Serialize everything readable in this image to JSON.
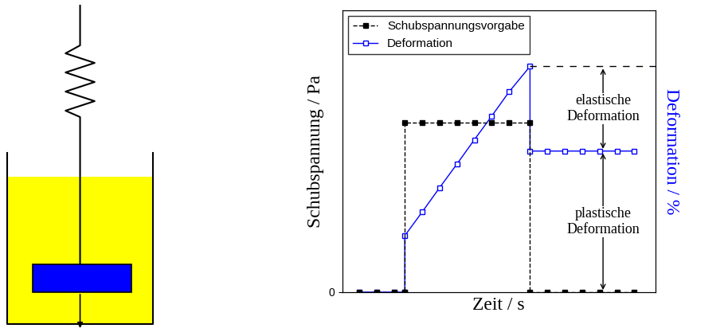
{
  "chart_data": {
    "type": "line",
    "x_label": "Zeit / s",
    "y_label": "Schubspannung / Pa",
    "y2_label": "Deformation / %",
    "xlim": [
      0,
      18
    ],
    "ylim": [
      0,
      5
    ],
    "yticks": [
      0
    ],
    "y2lim": [
      0,
      5
    ],
    "y2ticks": [],
    "tick_labels": "y",
    "legend": "upper left",
    "series": [
      {
        "name": "Schubspannungsvorgabe",
        "color": "#000000",
        "marker": "filled_square",
        "line_style": "dashed",
        "x": [
          1,
          2,
          3,
          3.6,
          3.6,
          4.6,
          5.6,
          6.6,
          7.6,
          8.6,
          9.6,
          10.8,
          10.8,
          11.8,
          12.8,
          13.8,
          14.8,
          15.8,
          16.8
        ],
        "values": [
          0,
          0,
          0,
          0,
          3,
          3,
          3,
          3,
          3,
          3,
          3,
          3,
          0,
          0,
          0,
          0,
          0,
          0,
          0
        ]
      },
      {
        "name": "Deformation",
        "color": "#0000ff",
        "marker": "open_square",
        "line_style": "solid",
        "axis": "y2",
        "x": [
          1,
          2,
          3,
          3.6,
          3.6,
          4.6,
          5.6,
          6.6,
          7.6,
          8.6,
          9.6,
          10.8,
          10.8,
          11.8,
          12.8,
          13.8,
          14.8,
          15.8,
          16.8
        ],
        "values": [
          0,
          0,
          0,
          0,
          1,
          1.42,
          1.85,
          2.27,
          2.7,
          3.12,
          3.55,
          4,
          2.5,
          2.5,
          2.5,
          2.5,
          2.5,
          2.5,
          2.5
        ]
      }
    ],
    "annotations": [
      "elastische Deformation",
      "plastische Deformation"
    ]
  }
}
